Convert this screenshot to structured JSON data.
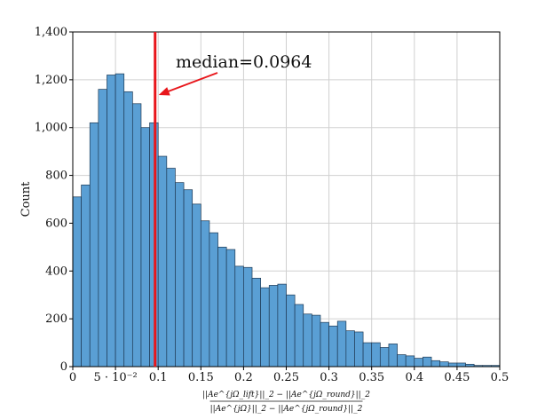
{
  "chart_data": {
    "type": "bar",
    "ylabel": "Count",
    "xlabel_numerator": "||Ae^{jΩ_lift}||_2 − ||Ae^{jΩ_round}||_2",
    "xlabel_denominator": "||Ae^{jΩ}||_2 − ||Ae^{jΩ_round}||_2",
    "xlim": [
      0,
      0.5
    ],
    "ylim": [
      0,
      1400
    ],
    "bin_start": 0,
    "bin_width": 0.01,
    "values": [
      710,
      760,
      1020,
      1160,
      1220,
      1225,
      1150,
      1100,
      1000,
      1020,
      880,
      830,
      770,
      740,
      680,
      610,
      560,
      500,
      490,
      420,
      415,
      370,
      330,
      340,
      345,
      300,
      260,
      220,
      215,
      185,
      170,
      190,
      150,
      145,
      100,
      100,
      80,
      95,
      50,
      45,
      35,
      40,
      25,
      20,
      15,
      15,
      10,
      5,
      5,
      5
    ],
    "x_ticks": [
      0,
      0.05,
      0.1,
      0.15,
      0.2,
      0.25,
      0.3,
      0.35,
      0.4,
      0.45,
      0.5
    ],
    "x_tick_labels": [
      "0",
      "5 · 10⁻²",
      "0.1",
      "0.15",
      "0.2",
      "0.25",
      "0.3",
      "0.35",
      "0.4",
      "0.45",
      "0.5"
    ],
    "y_ticks": [
      0,
      200,
      400,
      600,
      800,
      1000,
      1200,
      1400
    ],
    "y_tick_labels": [
      "0",
      "200",
      "400",
      "600",
      "800",
      "1,000",
      "1,200",
      "1,400"
    ],
    "median": 0.0964,
    "median_label": "median=0.0964",
    "grid": true,
    "colors": {
      "bar": "#5a9fd4",
      "bar_edge": "#1f3a55",
      "median": "#e8161b",
      "grid": "#d0d0d0"
    }
  }
}
